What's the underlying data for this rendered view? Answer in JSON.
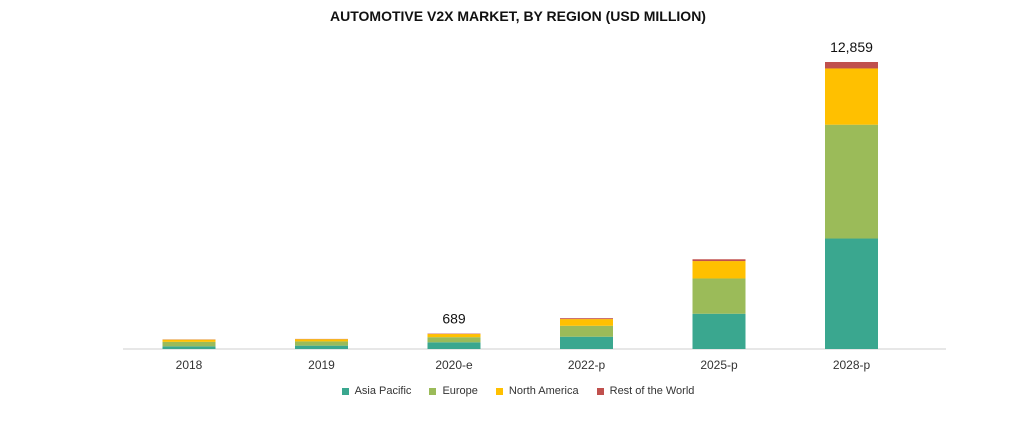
{
  "chart_data": {
    "type": "bar",
    "stacked": true,
    "title": "AUTOMOTIVE V2X MARKET, BY REGION (USD MILLION)",
    "xlabel": "",
    "ylabel": "",
    "categories": [
      "2018",
      "2019",
      "2020-e",
      "2022-p",
      "2025-p",
      "2028-p"
    ],
    "series": [
      {
        "name": "Asia Pacific",
        "color": "#3aa78f",
        "values": [
          120,
          150,
          300,
          550,
          1580,
          4950
        ]
      },
      {
        "name": "Europe",
        "color": "#9bbb59",
        "values": [
          200,
          190,
          230,
          490,
          1580,
          5100
        ]
      },
      {
        "name": "North America",
        "color": "#ffc000",
        "values": [
          100,
          100,
          140,
          300,
          780,
          2520
        ]
      },
      {
        "name": "Rest of the World",
        "color": "#c0504d",
        "values": [
          10,
          12,
          19,
          40,
          80,
          289
        ]
      }
    ],
    "data_labels": [
      {
        "category": "2020-e",
        "text": "689"
      },
      {
        "category": "2028-p",
        "text": "12,859"
      }
    ],
    "ylim": [
      0,
      12859
    ],
    "grid": false,
    "legend_position": "bottom"
  }
}
